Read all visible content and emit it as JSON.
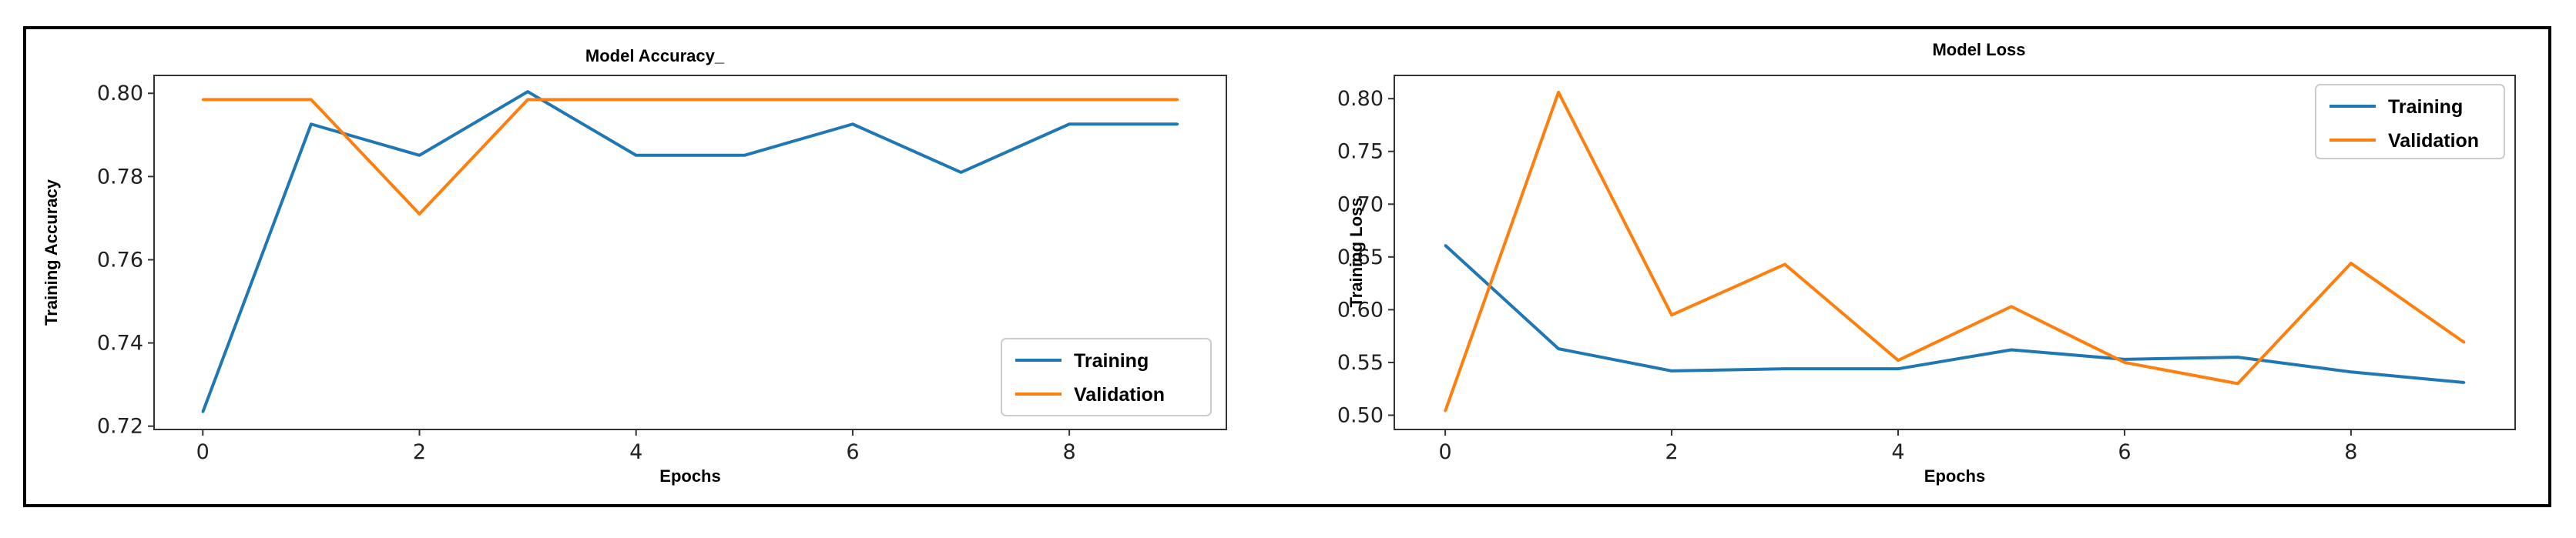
{
  "chart_data": [
    {
      "type": "line",
      "title": "Model Accuracy_",
      "xlabel": "Epochs",
      "ylabel": "Training Accuracy",
      "x": [
        0,
        1,
        2,
        3,
        4,
        5,
        6,
        7,
        8,
        9
      ],
      "xticks": [
        0,
        2,
        4,
        6,
        8
      ],
      "xtick_labels": [
        "0",
        "2",
        "4",
        "6",
        "8"
      ],
      "xlim": [
        -0.45,
        9.45
      ],
      "yticks": [
        0.72,
        0.74,
        0.76,
        0.78,
        0.8
      ],
      "ytick_labels": [
        "0.72",
        "0.74",
        "0.76",
        "0.78",
        "0.80"
      ],
      "ylim": [
        0.7192,
        0.8043
      ],
      "legend_position": "bottom-right",
      "series": [
        {
          "name": "Training",
          "color": "#1f77b4",
          "values": [
            0.7234,
            0.7926,
            0.7851,
            0.8004,
            0.7851,
            0.7851,
            0.7926,
            0.781,
            0.7926,
            0.7926
          ]
        },
        {
          "name": "Validation",
          "color": "#ff7f0e",
          "values": [
            0.7985,
            0.7985,
            0.771,
            0.7985,
            0.7985,
            0.7985,
            0.7985,
            0.7985,
            0.7985,
            0.7985
          ]
        }
      ]
    },
    {
      "type": "line",
      "title": "Model Loss",
      "xlabel": "Epochs",
      "ylabel": "Training Loss",
      "x": [
        0,
        1,
        2,
        3,
        4,
        5,
        6,
        7,
        8,
        9
      ],
      "xticks": [
        0,
        2,
        4,
        6,
        8
      ],
      "xtick_labels": [
        "0",
        "2",
        "4",
        "6",
        "8"
      ],
      "xlim": [
        -0.45,
        9.45
      ],
      "yticks": [
        0.5,
        0.55,
        0.6,
        0.65,
        0.7,
        0.75,
        0.8
      ],
      "ytick_labels": [
        "0.50",
        "0.55",
        "0.60",
        "0.65",
        "0.70",
        "0.75",
        "0.80"
      ],
      "ylim": [
        0.4865,
        0.822
      ],
      "legend_position": "top-right",
      "series": [
        {
          "name": "Training",
          "color": "#1f77b4",
          "values": [
            0.661,
            0.563,
            0.542,
            0.544,
            0.544,
            0.562,
            0.553,
            0.555,
            0.541,
            0.531
          ]
        },
        {
          "name": "Validation",
          "color": "#ff7f0e",
          "values": [
            0.504,
            0.806,
            0.595,
            0.643,
            0.552,
            0.603,
            0.55,
            0.53,
            0.644,
            0.569
          ]
        }
      ]
    }
  ]
}
